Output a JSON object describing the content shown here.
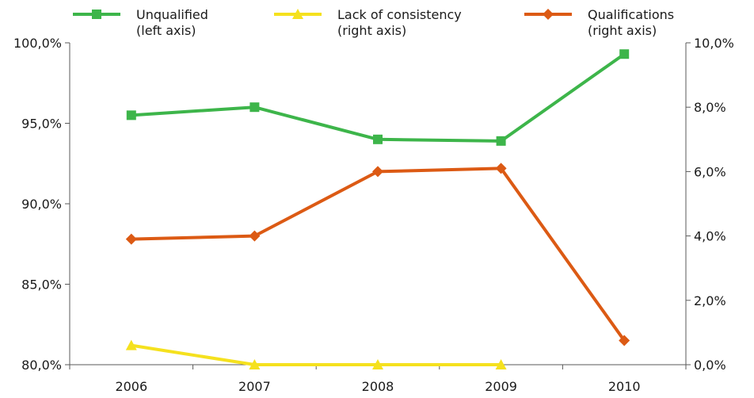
{
  "chart_data": {
    "type": "line",
    "categories": [
      "2006",
      "2007",
      "2008",
      "2009",
      "2010"
    ],
    "y_left": {
      "ticks": [
        "80,0%",
        "85,0%",
        "90,0%",
        "95,0%",
        "100,0%"
      ],
      "ylim": [
        80,
        100
      ]
    },
    "y_right": {
      "ticks": [
        "0,0%",
        "2,0%",
        "4,0%",
        "6,0%",
        "8,0%",
        "10,0%"
      ],
      "ylim": [
        0,
        10
      ]
    },
    "grid": false,
    "legend_position": "top",
    "series": [
      {
        "name_line1": "Unqualified",
        "name_line2": "(left axis)",
        "axis": "left",
        "color": "#3db54a",
        "marker": "square",
        "values": [
          95.5,
          96.0,
          94.0,
          93.9,
          99.3
        ]
      },
      {
        "name_line1": "Lack of consistency",
        "name_line2": "(right axis)",
        "axis": "right",
        "color": "#f5e11e",
        "marker": "triangle",
        "values": [
          0.6,
          0.0,
          0.0,
          0.0,
          null
        ]
      },
      {
        "name_line1": "Qualifications",
        "name_line2": "(right axis)",
        "axis": "right",
        "color": "#dc5a14",
        "marker": "diamond",
        "values": [
          3.9,
          4.0,
          6.0,
          6.1,
          0.75
        ]
      }
    ]
  }
}
